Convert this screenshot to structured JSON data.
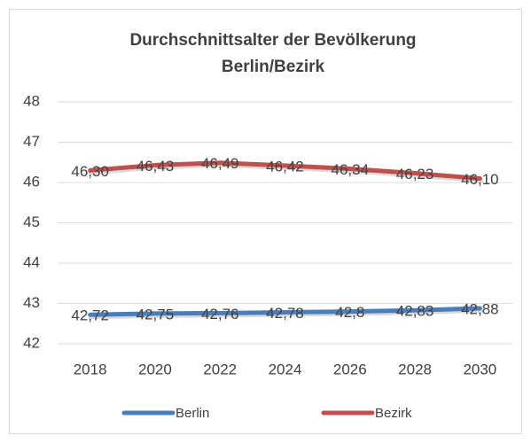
{
  "chart_data": {
    "type": "line",
    "title": [
      "Durchschnittsalter der Bevölkerung",
      "Berlin/Bezirk"
    ],
    "categories": [
      "2018",
      "2020",
      "2022",
      "2024",
      "2026",
      "2028",
      "2030"
    ],
    "series": [
      {
        "name": "Berlin",
        "color": "#4a7ebb",
        "values": [
          42.72,
          42.75,
          42.76,
          42.78,
          42.8,
          42.83,
          42.88
        ],
        "value_labels": [
          "42,72",
          "42,75",
          "42,76",
          "42,78",
          "42,8",
          "42,83",
          "42,88"
        ]
      },
      {
        "name": "Bezirk",
        "color": "#c0504d",
        "values": [
          46.3,
          46.43,
          46.49,
          46.42,
          46.34,
          46.23,
          46.1
        ],
        "value_labels": [
          "46,30",
          "46,43",
          "46,49",
          "46,42",
          "46,34",
          "46,23",
          "46,10"
        ]
      }
    ],
    "ylim": [
      42,
      48
    ],
    "yticks": [
      42,
      43,
      44,
      45,
      46,
      47,
      48
    ],
    "grid": true,
    "legend": "bottom"
  }
}
